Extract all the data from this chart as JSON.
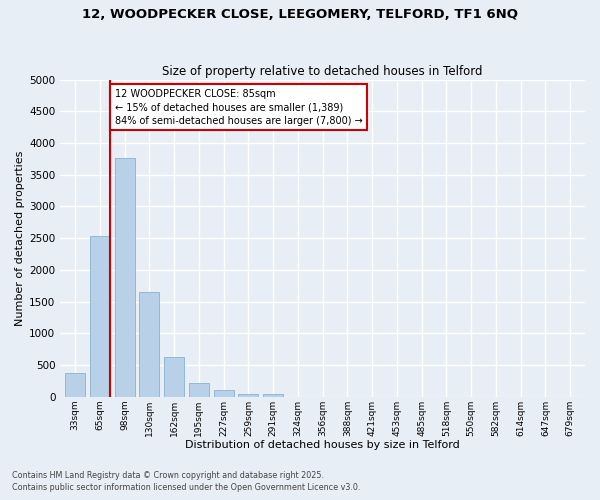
{
  "title1": "12, WOODPECKER CLOSE, LEEGOMERY, TELFORD, TF1 6NQ",
  "title2": "Size of property relative to detached houses in Telford",
  "xlabel": "Distribution of detached houses by size in Telford",
  "ylabel": "Number of detached properties",
  "bins": [
    "33sqm",
    "65sqm",
    "98sqm",
    "130sqm",
    "162sqm",
    "195sqm",
    "227sqm",
    "259sqm",
    "291sqm",
    "324sqm",
    "356sqm",
    "388sqm",
    "421sqm",
    "453sqm",
    "485sqm",
    "518sqm",
    "550sqm",
    "582sqm",
    "614sqm",
    "647sqm",
    "679sqm"
  ],
  "values": [
    370,
    2540,
    3760,
    1650,
    620,
    220,
    100,
    45,
    45,
    0,
    0,
    0,
    0,
    0,
    0,
    0,
    0,
    0,
    0,
    0,
    0
  ],
  "bar_color": "#b8d0e8",
  "bar_edge_color": "#7aaac8",
  "vline_color": "#cc0000",
  "annotation_text": "12 WOODPECKER CLOSE: 85sqm\n← 15% of detached houses are smaller (1,389)\n84% of semi-detached houses are larger (7,800) →",
  "annotation_box_color": "#ffffff",
  "annotation_box_edge": "#cc0000",
  "ylim": [
    0,
    5000
  ],
  "yticks": [
    0,
    500,
    1000,
    1500,
    2000,
    2500,
    3000,
    3500,
    4000,
    4500,
    5000
  ],
  "bg_color": "#e8eef5",
  "grid_color": "#ffffff",
  "footer1": "Contains HM Land Registry data © Crown copyright and database right 2025.",
  "footer2": "Contains public sector information licensed under the Open Government Licence v3.0."
}
